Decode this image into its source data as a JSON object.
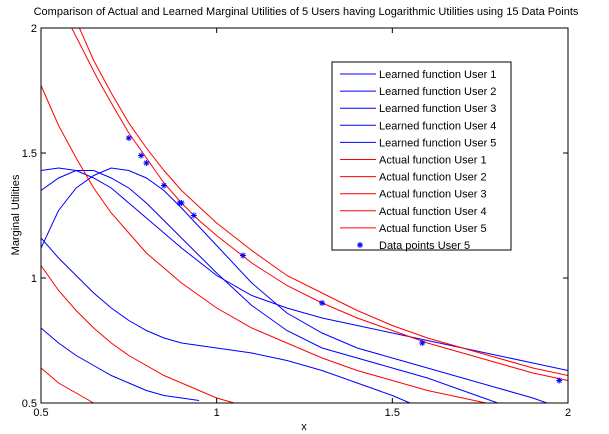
{
  "chart_data": {
    "type": "line",
    "title": "Comparison of Actual and Learned Marginal Utilities of 5 Users having Logarithmic Utilities using 15 Data Points",
    "xlabel": "x",
    "ylabel": "Marginal Utilities",
    "xlim": [
      0.5,
      2
    ],
    "ylim": [
      0.5,
      2
    ],
    "xticks": [
      "0.5",
      "1",
      "1.5",
      "2"
    ],
    "yticks": [
      "0.5",
      "1",
      "1.5",
      "2"
    ],
    "grid": false,
    "legend_position": "top-right",
    "colors": {
      "learned": "#0000ff",
      "actual": "#ff0000",
      "points": "#0000ff"
    },
    "series": [
      {
        "name": "Learned function User 1",
        "kind": "learned",
        "x": [
          0.5,
          0.55,
          0.6,
          0.65,
          0.7,
          0.75,
          0.8,
          0.9,
          1.0,
          1.1,
          1.2,
          1.3,
          1.4,
          1.5,
          1.6,
          1.7,
          1.8,
          1.9,
          2.0
        ],
        "y": [
          1.43,
          1.44,
          1.43,
          1.4,
          1.36,
          1.3,
          1.24,
          1.12,
          1.01,
          0.93,
          0.88,
          0.84,
          0.81,
          0.78,
          0.75,
          0.72,
          0.69,
          0.66,
          0.63
        ]
      },
      {
        "name": "Learned function User 2",
        "kind": "learned",
        "x": [
          0.5,
          0.55,
          0.6,
          0.65,
          0.7,
          0.75,
          0.8,
          0.85,
          0.9,
          1.0,
          1.1,
          1.2,
          1.3,
          1.4,
          1.5,
          1.6,
          1.7,
          1.8,
          1.9,
          2.0
        ],
        "y": [
          1.12,
          1.27,
          1.36,
          1.41,
          1.44,
          1.43,
          1.4,
          1.35,
          1.28,
          1.13,
          0.98,
          0.86,
          0.78,
          0.72,
          0.68,
          0.64,
          0.6,
          0.56,
          0.52,
          0.47
        ]
      },
      {
        "name": "Learned function User 3",
        "kind": "learned",
        "x": [
          0.5,
          0.55,
          0.6,
          0.65,
          0.7,
          0.75,
          0.8,
          0.85,
          0.9,
          1.0,
          1.1,
          1.2,
          1.3,
          1.4,
          1.5,
          1.6,
          1.7,
          1.8
        ],
        "y": [
          1.35,
          1.4,
          1.43,
          1.43,
          1.4,
          1.36,
          1.3,
          1.23,
          1.16,
          1.02,
          0.89,
          0.79,
          0.72,
          0.68,
          0.64,
          0.6,
          0.55,
          0.5
        ]
      },
      {
        "name": "Learned function User 4",
        "kind": "learned",
        "x": [
          0.5,
          0.55,
          0.6,
          0.65,
          0.7,
          0.75,
          0.8,
          0.85,
          0.9,
          0.95,
          1.0,
          1.05,
          1.1,
          1.2,
          1.3,
          1.4,
          1.5,
          1.55
        ],
        "y": [
          1.16,
          1.08,
          1.01,
          0.94,
          0.88,
          0.83,
          0.79,
          0.76,
          0.74,
          0.73,
          0.72,
          0.71,
          0.7,
          0.67,
          0.63,
          0.58,
          0.53,
          0.5
        ]
      },
      {
        "name": "Learned function User 5",
        "kind": "learned",
        "x": [
          0.5,
          0.55,
          0.6,
          0.65,
          0.7,
          0.75,
          0.8,
          0.85,
          0.9,
          0.95
        ],
        "y": [
          0.8,
          0.74,
          0.69,
          0.65,
          0.61,
          0.58,
          0.55,
          0.53,
          0.52,
          0.51
        ]
      },
      {
        "name": "Actual function User 1",
        "kind": "actual",
        "x": [
          0.6,
          0.65,
          0.7,
          0.75,
          0.8,
          0.85,
          0.9,
          1.0,
          1.1,
          1.2,
          1.3,
          1.4,
          1.5,
          1.6,
          1.7,
          1.8,
          1.9,
          2.0
        ],
        "y": [
          2.03,
          1.87,
          1.74,
          1.62,
          1.52,
          1.43,
          1.35,
          1.22,
          1.11,
          1.01,
          0.94,
          0.87,
          0.81,
          0.76,
          0.72,
          0.68,
          0.64,
          0.61
        ]
      },
      {
        "name": "Actual function User 2",
        "kind": "actual",
        "x": [
          0.5,
          0.55,
          0.6,
          0.65,
          0.7,
          0.75,
          0.8,
          0.85,
          0.9,
          1.0,
          1.1,
          1.2,
          1.3,
          1.4,
          1.5,
          1.6,
          1.7,
          1.8,
          1.9,
          2.0
        ],
        "y": [
          1.77,
          1.61,
          1.48,
          1.36,
          1.26,
          1.18,
          1.1,
          1.04,
          0.98,
          0.88,
          0.8,
          0.74,
          0.68,
          0.63,
          0.59,
          0.55,
          0.52,
          0.49,
          0.47,
          0.45
        ]
      },
      {
        "name": "Actual function User 3",
        "kind": "actual",
        "x": [
          0.5,
          0.55,
          0.6,
          0.65,
          0.7,
          0.75,
          0.8,
          0.85,
          0.9,
          0.95,
          1.0,
          1.05,
          1.1
        ],
        "y": [
          1.05,
          0.95,
          0.87,
          0.8,
          0.74,
          0.69,
          0.65,
          0.61,
          0.58,
          0.55,
          0.52,
          0.5,
          0.48
        ]
      },
      {
        "name": "Actual function User 4",
        "kind": "actual",
        "x": [
          0.5,
          0.55,
          0.6,
          0.65,
          0.7,
          0.75,
          0.8
        ],
        "y": [
          0.64,
          0.58,
          0.54,
          0.5,
          0.46,
          0.43,
          0.4
        ]
      },
      {
        "name": "Actual function User 5",
        "kind": "actual",
        "x": [
          0.58,
          0.62,
          0.66,
          0.7,
          0.75,
          0.8,
          0.85,
          0.9,
          0.95,
          1.0,
          1.1,
          1.2,
          1.3,
          1.4,
          1.5,
          1.6,
          1.7,
          1.8,
          1.9,
          2.0
        ],
        "y": [
          2.02,
          1.91,
          1.8,
          1.7,
          1.58,
          1.48,
          1.38,
          1.3,
          1.23,
          1.17,
          1.06,
          0.97,
          0.9,
          0.84,
          0.79,
          0.74,
          0.7,
          0.66,
          0.62,
          0.59
        ]
      },
      {
        "name": "Data points User 5",
        "kind": "points",
        "x": [
          0.75,
          0.785,
          0.8,
          0.85,
          0.895,
          0.9,
          0.935,
          1.075,
          1.3,
          1.585,
          1.975
        ],
        "y": [
          1.56,
          1.49,
          1.46,
          1.37,
          1.3,
          1.3,
          1.25,
          1.09,
          0.9,
          0.74,
          0.59
        ]
      }
    ]
  }
}
